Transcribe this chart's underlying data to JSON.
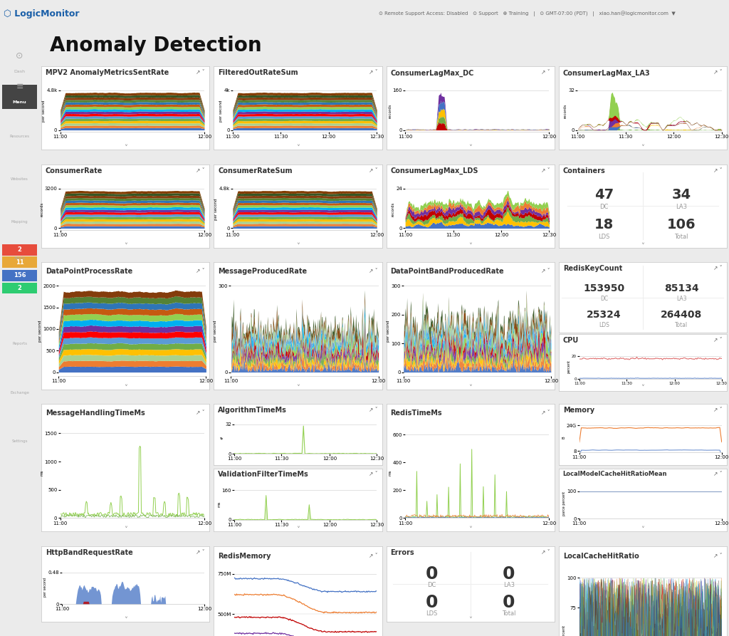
{
  "title": "Anomaly Detection",
  "header_bg": "#ffffff",
  "sidebar_bg": "#2b2b2b",
  "dashboard_bg": "#ebebeb",
  "panel_bg": "#ffffff",
  "panel_border": "#cccccc",
  "title_fontsize": 20,
  "panel_title_fontsize": 7,
  "tick_fontsize": 5,
  "alert_counts": [
    "2",
    "11",
    "156",
    "2"
  ],
  "alert_colors": [
    "#e74c3c",
    "#e8a838",
    "#4472c4",
    "#2ecc71"
  ],
  "colors_stacked": [
    "#4472c4",
    "#ed7d31",
    "#a9d18e",
    "#ffc000",
    "#70ad47",
    "#5b9bd5",
    "#ff0000",
    "#7030a0",
    "#00b0f0",
    "#92d050",
    "#c55a11",
    "#2e75b6",
    "#548235",
    "#843c0c",
    "#375623",
    "#833c00",
    "#002060",
    "#7f7f7f",
    "#d6dce4",
    "#ffe699"
  ],
  "colors_la3": [
    "#70ad47",
    "#ffc000",
    "#4472c4",
    "#ed7d31",
    "#7030a0",
    "#c00000",
    "#92d050",
    "#00b0f0"
  ],
  "colors_dc": [
    "#c00000",
    "#70ad47",
    "#ffc000",
    "#4472c4",
    "#7030a0",
    "#ed7d31",
    "#92d050"
  ],
  "colors_lds": [
    "#4472c4",
    "#ffc000",
    "#70ad47",
    "#c00000",
    "#7030a0",
    "#ed7d31",
    "#92d050"
  ],
  "colors_spiky": [
    "#4472c4",
    "#ed7d31",
    "#ffc000",
    "#70ad47",
    "#7030a0",
    "#c00000",
    "#92d050",
    "#00b0f0",
    "#5b9bd5",
    "#a9d18e",
    "#833c00",
    "#375623"
  ],
  "logo_color": "#1a5fa8"
}
